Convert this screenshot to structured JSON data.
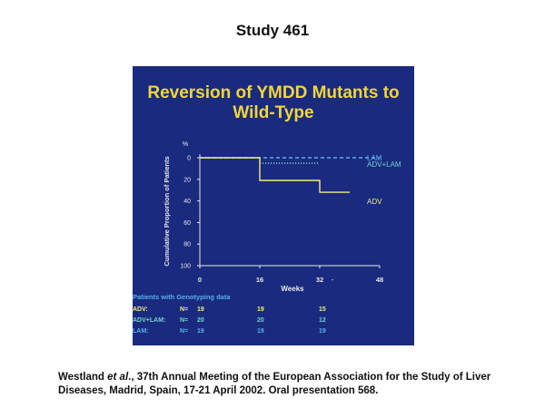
{
  "page": {
    "title": "Study 461",
    "citation_author": "Westland",
    "citation_etal": "et al",
    "citation_rest": "., 37th Annual Meeting of the European Association for the Study of Liver Diseases, Madrid, Spain, 17-21 April 2002. Oral presentation 568."
  },
  "colors": {
    "slide_bg": "#1a2a7e",
    "title_yellow": "#f0d63a",
    "axis": "#e8e8e8",
    "ADV": "#f2ec7a",
    "ADV+LAM": "#6fd6c8",
    "LAM": "#58aeee"
  },
  "chart_data": {
    "type": "line",
    "step": true,
    "title": [
      "Reversion of YMDD Mutants to",
      "Wild-Type"
    ],
    "ylabel": "Cumulative Proportion of Patients",
    "yunit": "%",
    "xlabel": "Weeks",
    "y_inverted": true,
    "ylim": [
      0,
      100
    ],
    "xlim": [
      0,
      48
    ],
    "yticks": [
      0,
      20,
      40,
      60,
      80,
      100
    ],
    "ytick_labels": [
      "0",
      "20",
      "40",
      "60",
      "80",
      "100"
    ],
    "xticks": [
      0,
      16,
      32,
      48
    ],
    "xtick_labels": [
      "0",
      "16",
      "32",
      "48"
    ],
    "dash_marker": "-",
    "series": [
      {
        "name": "LAM",
        "label": "LAM",
        "line": "dashed",
        "x": [
          0,
          48
        ],
        "y": [
          0,
          0
        ]
      },
      {
        "name": "ADV+LAM",
        "label": "ADV+LAM",
        "line": "dotted",
        "x": [
          0,
          16,
          16,
          32
        ],
        "y": [
          0,
          0,
          5,
          5
        ]
      },
      {
        "name": "ADV",
        "label": "ADV",
        "line": "solid",
        "x": [
          0,
          16,
          16,
          32,
          32,
          40
        ],
        "y": [
          0,
          0,
          21,
          21,
          32,
          32
        ]
      }
    ],
    "genotyping": {
      "heading": "Patients with Genotyping data",
      "rows": [
        {
          "label": "ADV:",
          "n_label": "N=",
          "values": [
            "19",
            "19",
            "15"
          ],
          "color_key": "ADV"
        },
        {
          "label": "ADV+LAM:",
          "n_label": "N=",
          "values": [
            "20",
            "20",
            "12"
          ],
          "color_key": "ADV+LAM"
        },
        {
          "label": "LAM:",
          "n_label": "N=",
          "values": [
            "19",
            "19",
            "19"
          ],
          "color_key": "LAM"
        }
      ]
    }
  }
}
